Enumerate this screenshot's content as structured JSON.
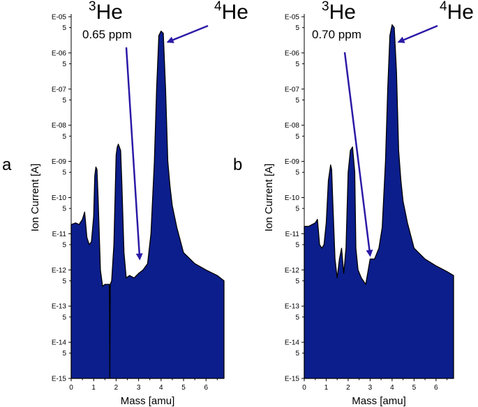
{
  "chart_data": [
    {
      "type": "area",
      "panel_label": "a",
      "xlabel": "Mass [amu]",
      "ylabel": "Ion Current [A]",
      "xlim": [
        0,
        6.8
      ],
      "x_ticks": [
        "0",
        "1",
        "2",
        "3",
        "4",
        "5",
        "6"
      ],
      "y_scale": "log",
      "ylim": [
        1e-15,
        1e-05
      ],
      "y_major_ticks": [
        "E-15",
        "E-14",
        "E-13",
        "E-12",
        "E-11",
        "E-10",
        "E-09",
        "E-08",
        "E-07",
        "E-06",
        "E-05"
      ],
      "y_minor_tick_label": "5",
      "fill_color": "#0b1e8c",
      "x": [
        0,
        0.2,
        0.35,
        0.5,
        0.6,
        0.7,
        0.8,
        0.9,
        1.0,
        1.05,
        1.1,
        1.15,
        1.2,
        1.3,
        1.4,
        1.5,
        1.6,
        1.7,
        1.72,
        1.74,
        1.8,
        1.9,
        2.0,
        2.05,
        2.1,
        2.2,
        2.25,
        2.35,
        2.45,
        2.6,
        2.8,
        3.0,
        3.2,
        3.4,
        3.55,
        3.7,
        3.8,
        3.9,
        4.0,
        4.1,
        4.2,
        4.3,
        4.4,
        4.5,
        4.7,
        5.0,
        5.5,
        6.0,
        6.5,
        6.8
      ],
      "y": [
        1.8e-11,
        2e-11,
        1.8e-11,
        2.5e-11,
        4e-11,
        8e-12,
        5e-12,
        6e-12,
        3e-11,
        4e-10,
        7e-10,
        6e-10,
        1e-10,
        1e-12,
        3.5e-13,
        4e-13,
        4e-13,
        4e-13,
        1e-15,
        4e-13,
        5e-13,
        5e-12,
        1.5e-09,
        2.5e-09,
        3e-09,
        2e-09,
        3e-10,
        3e-12,
        6e-13,
        7e-13,
        6e-13,
        8e-13,
        1e-12,
        1.5e-12,
        1e-11,
        1e-09,
        1e-07,
        3e-06,
        4e-06,
        3.5e-06,
        1e-07,
        1e-09,
        2e-10,
        6e-11,
        1.5e-11,
        3e-12,
        1.5e-12,
        1e-12,
        7e-13,
        5e-13
      ],
      "annotations": [
        {
          "text_sup": "3",
          "text": "He",
          "points_to_x": 3.05,
          "points_to_y": 2e-12
        },
        {
          "text": "0.65 ppm"
        },
        {
          "text_sup": "4",
          "text": "He",
          "points_to_x": 4.3,
          "points_to_y": 2e-06
        }
      ]
    },
    {
      "type": "area",
      "panel_label": "b",
      "xlabel": "Mass [amu]",
      "ylabel": "Ion Current [A]",
      "xlim": [
        0,
        6.8
      ],
      "x_ticks": [
        "0",
        "1",
        "2",
        "3",
        "4",
        "5",
        "6"
      ],
      "y_scale": "log",
      "ylim": [
        1e-15,
        1e-05
      ],
      "y_major_ticks": [
        "E-15",
        "E-14",
        "E-13",
        "E-12",
        "E-11",
        "E-10",
        "E-09",
        "E-08",
        "E-07",
        "E-06",
        "E-05"
      ],
      "y_minor_tick_label": "5",
      "fill_color": "#0b1e8c",
      "x": [
        0,
        0.2,
        0.5,
        0.6,
        0.7,
        0.8,
        0.9,
        1.0,
        1.1,
        1.2,
        1.25,
        1.3,
        1.4,
        1.5,
        1.6,
        1.7,
        1.8,
        1.9,
        2.0,
        2.1,
        2.2,
        2.3,
        2.35,
        2.45,
        2.6,
        2.8,
        3.0,
        3.2,
        3.4,
        3.55,
        3.7,
        3.8,
        3.9,
        4.0,
        4.1,
        4.2,
        4.3,
        4.4,
        4.5,
        4.7,
        5.0,
        5.5,
        6.0,
        6.5,
        6.8
      ],
      "y": [
        1.6e-11,
        1.6e-11,
        2e-11,
        2.5e-11,
        5e-12,
        4e-12,
        5e-12,
        2e-11,
        3e-10,
        8e-10,
        6e-10,
        8e-11,
        2e-12,
        6e-13,
        2e-12,
        4e-12,
        8e-13,
        4e-12,
        5e-10,
        2e-09,
        2.5e-09,
        5e-10,
        4e-12,
        1e-12,
        6e-13,
        4e-13,
        2e-12,
        2e-12,
        4e-12,
        1.5e-11,
        1e-09,
        1e-07,
        3e-06,
        6e-06,
        5e-06,
        3e-07,
        2e-09,
        3e-10,
        8e-11,
        2e-11,
        4e-12,
        2e-12,
        1.3e-12,
        9e-13,
        7e-13
      ],
      "annotations": [
        {
          "text_sup": "3",
          "text": "He",
          "points_to_x": 3.0,
          "points_to_y": 2.5e-12
        },
        {
          "text": "0.70 ppm"
        },
        {
          "text_sup": "4",
          "text": "He",
          "points_to_x": 4.3,
          "points_to_y": 2e-06
        }
      ]
    }
  ]
}
